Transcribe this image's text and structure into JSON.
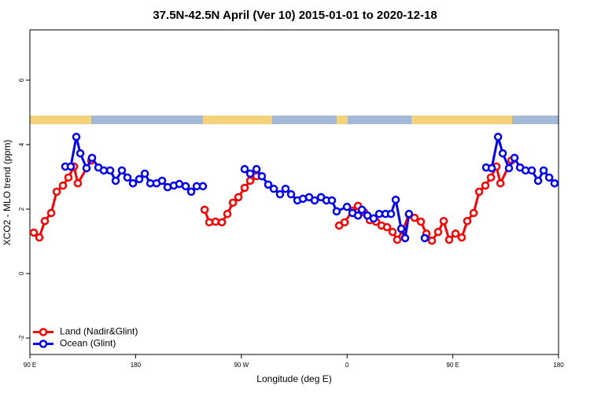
{
  "chart_data": {
    "type": "line",
    "title": "37.5N-42.5N April (Ver 10)   2015-01-01 to 2020-12-18",
    "x_label": "Longitude (deg E)",
    "y_label": "XCO2 - MLO trend (ppm)",
    "xlim": [
      90,
      540
    ],
    "ylim": [
      -2.51,
      7.56
    ],
    "xticks": [
      {
        "value": 90,
        "label": "90 E"
      },
      180,
      {
        "value": 270,
        "label": "90 W"
      },
      {
        "value": 360,
        "label": "0"
      },
      {
        "value": 450,
        "label": "90 E"
      },
      {
        "value": 540,
        "label": "180"
      }
    ],
    "yticks": [
      -2,
      0,
      2,
      4,
      6
    ],
    "legend": "bottom-left",
    "series": [
      {
        "name": "Land (Nadir&Glint)",
        "color": "#ff0000",
        "x": [
          93.3,
          98.0,
          102.7,
          108.1,
          112.8,
          118.1,
          122.8,
          127.5,
          130.8,
          142.2,
          null,
          238.7,
          242.7,
          248.0,
          253.4,
          258.1,
          262.8,
          267.5,
          272.8,
          277.5,
          282.9,
          null,
          353.2,
          357.9,
          364.6,
          369.3,
          374.6,
          379.3,
          384.6,
          389.3,
          394.0,
          398.7,
          402.7,
          407.4,
          412.7,
          417.4,
          422.8,
          427.5,
          432.2,
          437.5,
          442.2,
          446.9,
          452.3,
          457.6,
          462.3,
          467.7,
          472.4,
          477.7,
          482.4,
          487.1,
          490.5,
          499.9
        ],
        "values": [
          1.27,
          1.12,
          1.63,
          1.88,
          2.54,
          2.73,
          2.98,
          3.32,
          2.8,
          3.51,
          null,
          1.98,
          1.59,
          1.61,
          1.59,
          1.85,
          2.2,
          2.37,
          2.66,
          2.88,
          3.02,
          null,
          1.49,
          1.59,
          1.95,
          2.1,
          1.9,
          1.66,
          1.61,
          1.49,
          1.44,
          1.29,
          1.05,
          1.34,
          1.83,
          1.73,
          1.61,
          1.24,
          1.02,
          1.29,
          1.63,
          1.05,
          1.24,
          1.12,
          1.63,
          1.88,
          2.54,
          2.73,
          2.98,
          3.32,
          2.8,
          3.51
        ]
      },
      {
        "name": "Ocean (Glint)",
        "color": "#0000ff",
        "x": [
          120.1,
          124.8,
          129.5,
          132.9,
          138.2,
          142.9,
          148.3,
          152.9,
          158.3,
          163.0,
          168.3,
          173.0,
          177.7,
          183.1,
          187.8,
          192.5,
          197.8,
          202.5,
          207.2,
          212.5,
          217.2,
          222.6,
          227.3,
          232.0,
          237.3,
          null,
          272.8,
          277.5,
          282.9,
          287.5,
          292.9,
          297.6,
          302.9,
          307.6,
          312.3,
          317.7,
          322.4,
          327.7,
          332.4,
          337.8,
          342.4,
          347.1,
          351.1,
          359.9,
          364.6,
          369.3,
          372.6,
          377.3,
          382.6,
          387.3,
          392.7,
          397.4,
          401.4,
          406.1,
          409.4,
          412.7,
          null,
          426.1,
          null,
          478.4,
          483.1,
          488.5,
          492.5,
          497.8,
          502.5,
          507.2,
          511.9,
          517.2,
          522.6,
          527.3,
          532.0,
          536.6
        ],
        "values": [
          3.32,
          3.32,
          4.24,
          3.73,
          3.27,
          3.59,
          3.29,
          3.2,
          3.2,
          2.88,
          3.2,
          2.98,
          2.8,
          2.93,
          3.1,
          2.8,
          2.8,
          2.88,
          2.68,
          2.73,
          2.78,
          2.71,
          2.54,
          2.71,
          2.71,
          null,
          3.24,
          3.1,
          3.24,
          3.02,
          2.76,
          2.63,
          2.46,
          2.63,
          2.46,
          2.27,
          2.32,
          2.37,
          2.27,
          2.37,
          2.27,
          2.27,
          1.93,
          2.07,
          1.88,
          1.8,
          1.98,
          1.8,
          1.71,
          1.85,
          1.85,
          1.85,
          2.29,
          1.39,
          1.1,
          1.85,
          null,
          1.1,
          null,
          3.29,
          3.27,
          4.24,
          3.73,
          3.27,
          3.59,
          3.29,
          3.2,
          3.2,
          2.88,
          3.2,
          2.98,
          2.8
        ]
      }
    ]
  }
}
